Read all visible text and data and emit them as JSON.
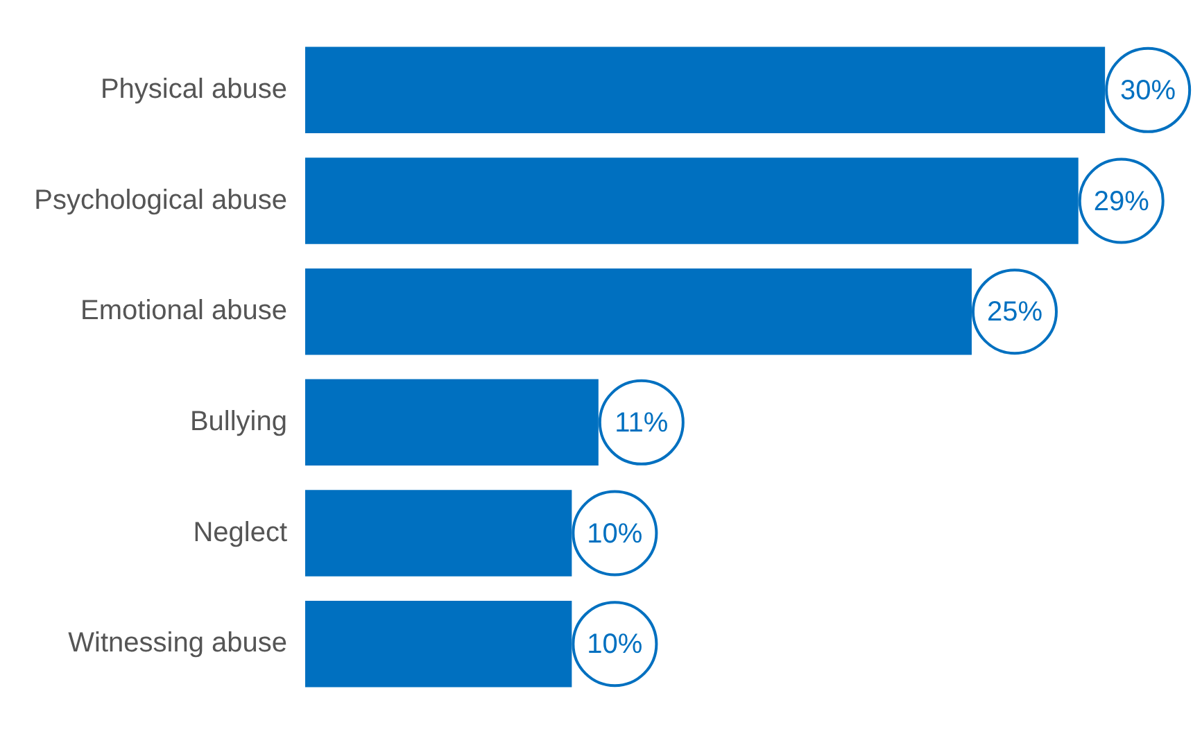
{
  "chart_data": {
    "type": "bar",
    "orientation": "horizontal",
    "categories": [
      "Physical abuse",
      "Psychological abuse",
      "Emotional abuse",
      "Bullying",
      "Neglect",
      "Witnessing abuse"
    ],
    "values": [
      30,
      29,
      25,
      11,
      10,
      10
    ],
    "value_labels": [
      "30%",
      "29%",
      "25%",
      "11%",
      "10%",
      "10%"
    ],
    "color": "#0070c0",
    "legend": false,
    "tick_labels": "y"
  }
}
